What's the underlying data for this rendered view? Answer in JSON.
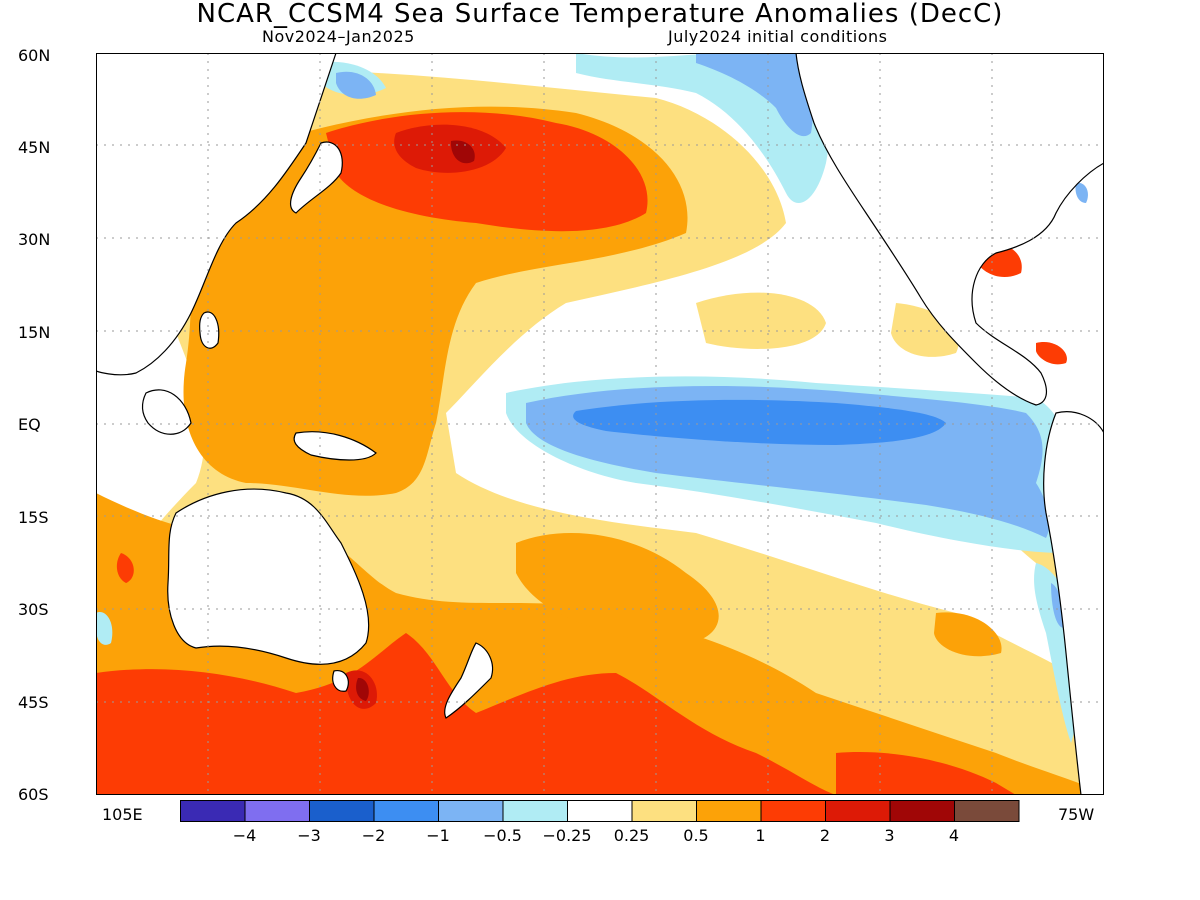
{
  "header": {
    "title": "NCAR_CCSM4 Sea Surface Temperature Anomalies (DecC)",
    "period": "Nov2024–Jan2025",
    "init": "July2024 initial conditions"
  },
  "axes": {
    "lat_labels": [
      "60N",
      "45N",
      "30N",
      "15N",
      "EQ",
      "15S",
      "30S",
      "45S",
      "60S"
    ],
    "lon_left": "105E",
    "lon_right": "75W"
  },
  "colorbar": {
    "colors": [
      "#3a2ab4",
      "#7f6ef0",
      "#1a5fcc",
      "#3d8ef2",
      "#7cb4f4",
      "#b0ecf4",
      "#ffffff",
      "#fde080",
      "#fca208",
      "#fd3c04",
      "#dd1a06",
      "#a00606",
      "#7a4a3a"
    ],
    "tick_labels": [
      "−4",
      "−3",
      "−2",
      "−1",
      "−0.5",
      "−0.25",
      "0.25",
      "0.5",
      "1",
      "2",
      "3",
      "4"
    ]
  }
}
